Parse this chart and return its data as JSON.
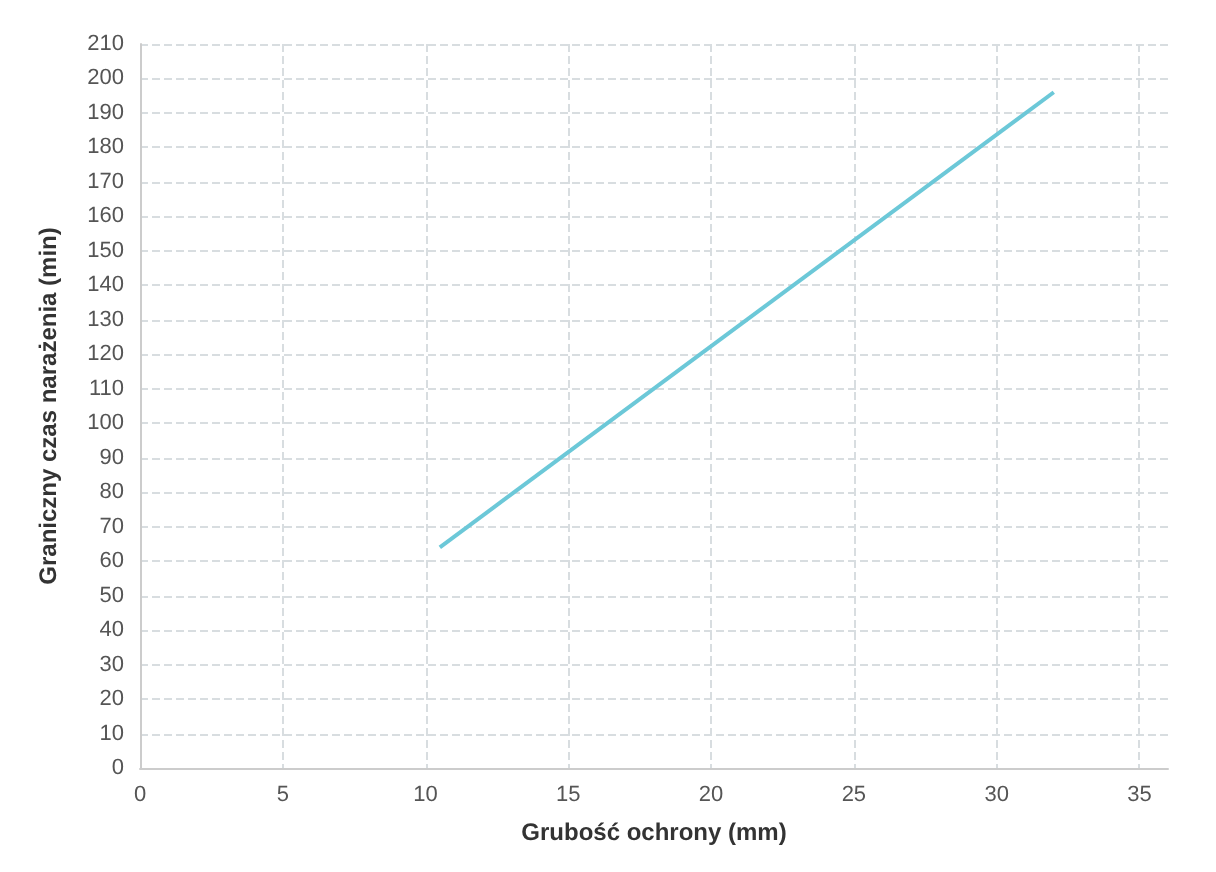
{
  "chart_data": {
    "type": "line",
    "xlabel": "Grubość ochrony (mm)",
    "ylabel": "Graniczny czas narażenia (min)",
    "series": [
      {
        "color": "#6cc8d8",
        "x": [
          10.5,
          32
        ],
        "values": [
          64,
          196
        ]
      }
    ],
    "xlim": [
      0,
      36
    ],
    "xticks": [
      0,
      5,
      10,
      15,
      20,
      25,
      30,
      35
    ],
    "ylim": [
      0,
      210
    ],
    "yticks": [
      0,
      10,
      20,
      30,
      40,
      50,
      60,
      70,
      80,
      90,
      100,
      110,
      120,
      130,
      140,
      150,
      160,
      170,
      180,
      190,
      200,
      210
    ],
    "grid": true,
    "marker": "none",
    "line_style": "solid"
  }
}
